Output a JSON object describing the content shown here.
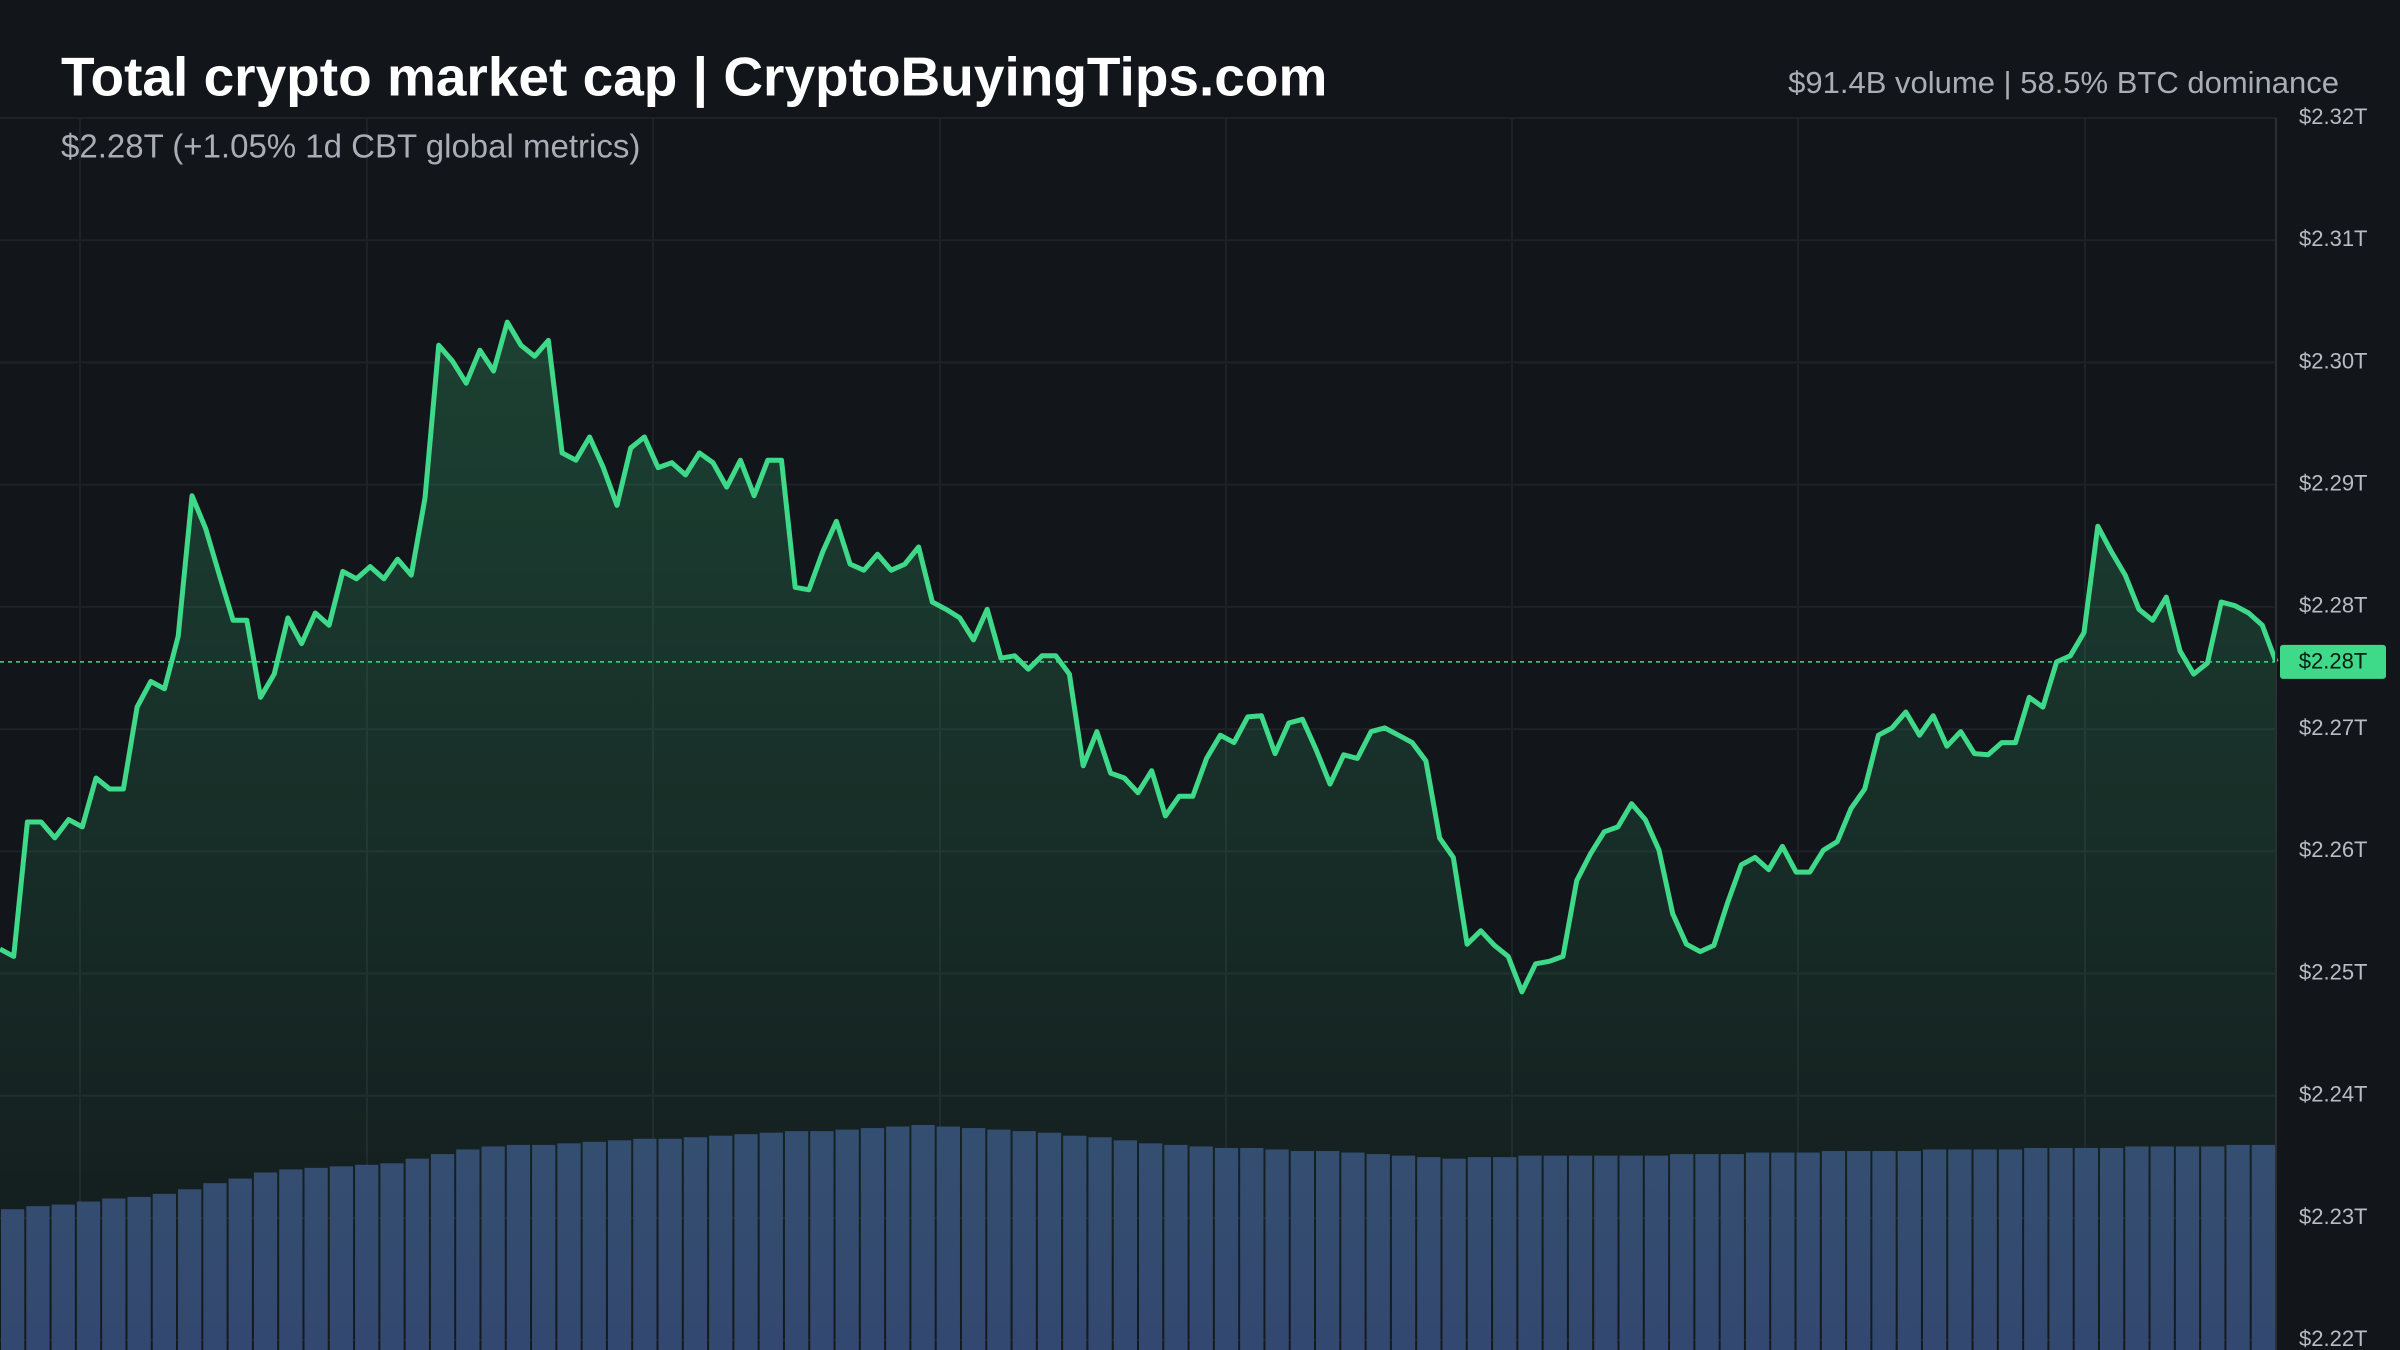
{
  "chart_data": {
    "type": "line",
    "title": "Total crypto market cap | CryptoBuyingTips.com",
    "subtitle": "$2.28T (+1.05% 1d CBT global metrics)",
    "header_stats": "$91.4B volume | 58.5% BTC dominance",
    "color": "#3fd98a",
    "values": [
      2.252,
      2.2514,
      2.2624,
      2.2624,
      2.2611,
      2.2626,
      2.262,
      2.266,
      2.2651,
      2.2651,
      2.2718,
      2.2739,
      2.2733,
      2.2776,
      2.2891,
      2.2864,
      2.2826,
      2.2789,
      2.2789,
      2.2726,
      2.2745,
      2.2791,
      2.277,
      2.2795,
      2.2785,
      2.2829,
      2.2823,
      2.2833,
      2.2823,
      2.2839,
      2.2826,
      2.2889,
      2.3014,
      2.3001,
      2.2983,
      2.301,
      2.2993,
      2.3033,
      2.3014,
      2.3005,
      2.3018,
      2.2926,
      2.292,
      2.2939,
      2.2914,
      2.2883,
      2.293,
      2.2939,
      2.2914,
      2.2918,
      2.2908,
      2.2926,
      2.2918,
      2.2898,
      2.292,
      2.2891,
      2.292,
      2.292,
      2.2816,
      2.2814,
      2.2845,
      2.287,
      2.2835,
      2.283,
      2.2843,
      2.283,
      2.2835,
      2.2849,
      2.2804,
      2.2798,
      2.2791,
      2.2773,
      2.2798,
      2.2758,
      2.276,
      2.2749,
      2.276,
      2.276,
      2.2745,
      2.267,
      2.2698,
      2.2664,
      2.266,
      2.2648,
      2.2666,
      2.2629,
      2.2645,
      2.2645,
      2.2676,
      2.2695,
      2.2689,
      2.271,
      2.2711,
      2.268,
      2.2705,
      2.2708,
      2.2683,
      2.2655,
      2.2679,
      2.2676,
      2.2698,
      2.2701,
      2.2695,
      2.2689,
      2.2674,
      2.2611,
      2.2595,
      2.2524,
      2.2535,
      2.2523,
      2.2514,
      2.2485,
      2.2508,
      2.251,
      2.2514,
      2.2576,
      2.2598,
      2.2616,
      2.262,
      2.2639,
      2.2626,
      2.2601,
      2.2549,
      2.2524,
      2.2518,
      2.2523,
      2.2558,
      2.2589,
      2.2595,
      2.2585,
      2.2604,
      2.2583,
      2.2583,
      2.2601,
      2.2608,
      2.2635,
      2.2651,
      2.2695,
      2.2701,
      2.2714,
      2.2695,
      2.2711,
      2.2686,
      2.2698,
      2.268,
      2.2679,
      2.2689,
      2.2689,
      2.2726,
      2.2718,
      2.2755,
      2.276,
      2.2779,
      2.2866,
      2.2845,
      2.2826,
      2.2798,
      2.2789,
      2.2808,
      2.2764,
      2.2745,
      2.2754,
      2.2804,
      2.2801,
      2.2795,
      2.2785,
      2.2755
    ],
    "volume": {
      "color": "#33456f",
      "values": [
        92,
        94,
        95,
        97,
        99,
        100,
        102,
        105,
        109,
        112,
        116,
        118,
        119,
        120,
        121,
        122,
        125,
        128,
        131,
        133,
        134,
        134,
        135,
        136,
        137,
        138,
        138,
        139,
        140,
        141,
        142,
        143,
        143,
        144,
        145,
        146,
        147,
        146,
        145,
        144,
        143,
        142,
        140,
        139,
        137,
        135,
        134,
        133,
        132,
        132,
        131,
        130,
        130,
        129,
        128,
        127,
        126,
        125,
        126,
        126,
        127,
        127,
        127,
        127,
        127,
        127,
        128,
        128,
        128,
        129,
        129,
        129,
        130,
        130,
        130,
        130,
        131,
        131,
        131,
        131,
        132,
        132,
        132,
        132,
        133,
        133,
        133,
        133,
        134,
        134
      ]
    },
    "last_value": {
      "value": 2.2755,
      "label": "$2.28T"
    },
    "ylim": [
      2.2192,
      2.32
    ],
    "yticks": [
      {
        "value": 2.22,
        "label": "$2.22T"
      },
      {
        "value": 2.23,
        "label": "$2.23T"
      },
      {
        "value": 2.24,
        "label": "$2.24T"
      },
      {
        "value": 2.25,
        "label": "$2.25T"
      },
      {
        "value": 2.26,
        "label": "$2.26T"
      },
      {
        "value": 2.27,
        "label": "$2.27T"
      },
      {
        "value": 2.28,
        "label": "$2.28T"
      },
      {
        "value": 2.29,
        "label": "$2.29T"
      },
      {
        "value": 2.3,
        "label": "$2.30T"
      },
      {
        "value": 2.31,
        "label": "$2.31T"
      },
      {
        "value": 2.32,
        "label": "$2.32T"
      }
    ],
    "grid": true
  }
}
